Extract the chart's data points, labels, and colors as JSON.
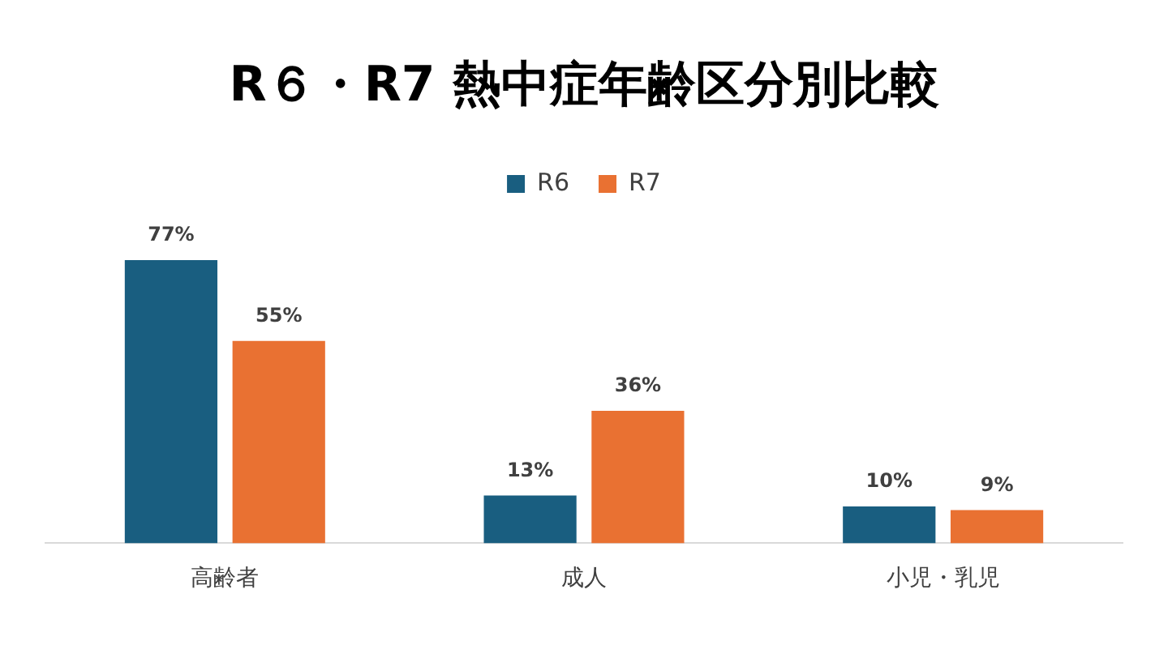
{
  "chart_data": {
    "type": "bar",
    "title": "R６・R7 熱中症年齢区分別比較",
    "categories": [
      "高齢者",
      "成人",
      "小児・乳児"
    ],
    "series": [
      {
        "name": "R6",
        "color": "#195e80",
        "values": [
          77,
          13,
          10
        ],
        "value_labels": [
          "77%",
          "13%",
          "10%"
        ]
      },
      {
        "name": "R7",
        "color": "#e97132",
        "values": [
          55,
          36,
          9
        ],
        "value_labels": [
          "55%",
          "36%",
          "9%"
        ]
      }
    ],
    "legend": "top",
    "grid": false,
    "tick_labels": "x"
  }
}
